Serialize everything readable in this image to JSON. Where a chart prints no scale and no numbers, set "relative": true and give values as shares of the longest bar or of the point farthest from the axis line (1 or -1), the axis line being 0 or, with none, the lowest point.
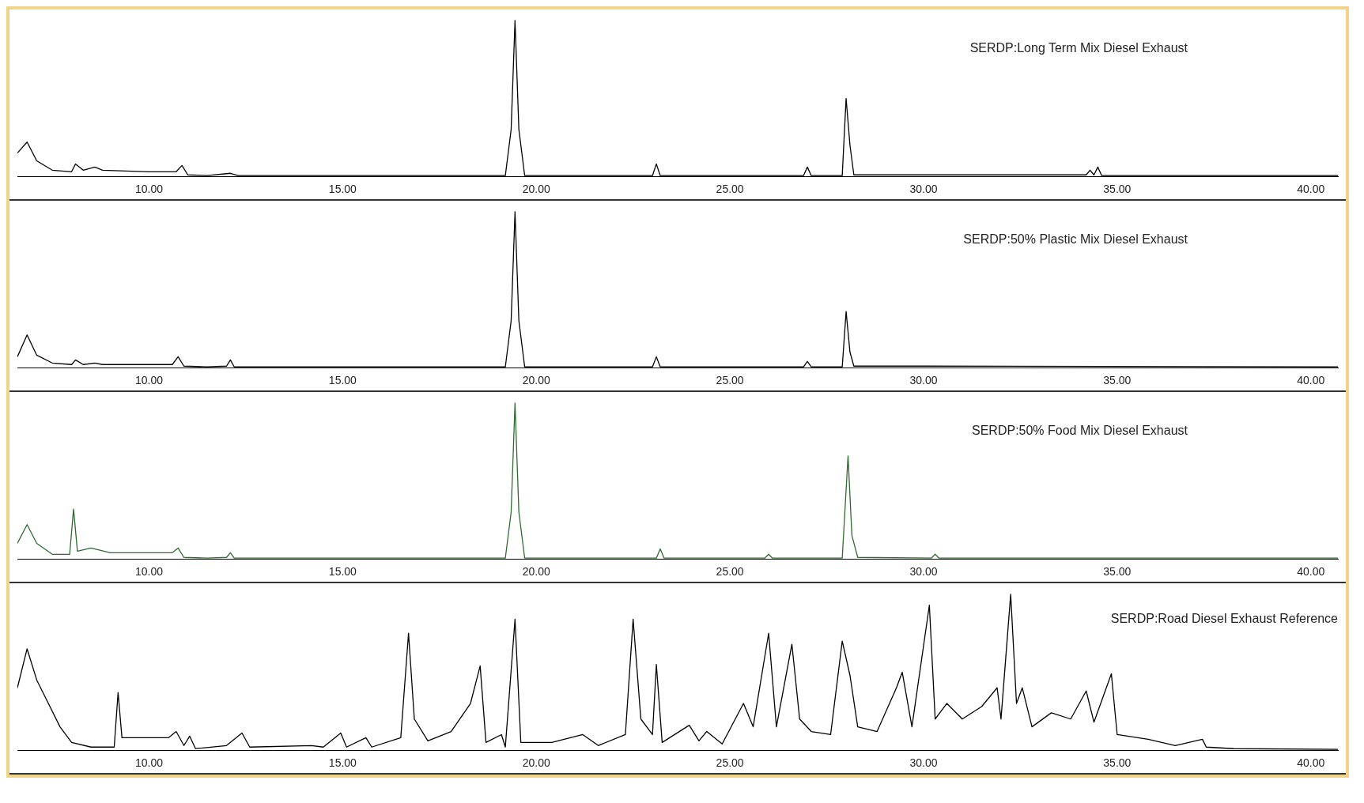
{
  "chart_data": [
    {
      "type": "line",
      "title": "SERDP:Long Term Mix Diesel Exhaust",
      "color": "#000000",
      "relative": true,
      "xlim": [
        6.6,
        40.7
      ],
      "xticks": [
        {
          "value": 10,
          "label": "10.00"
        },
        {
          "value": 15,
          "label": "15.00"
        },
        {
          "value": 20,
          "label": "20.00"
        },
        {
          "value": 25,
          "label": "25.00"
        },
        {
          "value": 30,
          "label": "30.00"
        },
        {
          "value": 35,
          "label": "35.00"
        },
        {
          "value": 40,
          "label": "40.00"
        }
      ],
      "x": [
        6.6,
        6.85,
        7.1,
        7.5,
        8.0,
        8.1,
        8.3,
        8.6,
        8.8,
        10.0,
        10.7,
        10.85,
        11.0,
        11.5,
        12.1,
        12.3,
        15,
        19.2,
        19.35,
        19.45,
        19.55,
        19.7,
        23.0,
        23.1,
        23.2,
        26.9,
        27.0,
        27.1,
        27.9,
        28.0,
        28.1,
        28.2,
        34.2,
        34.3,
        34.4,
        34.5,
        34.6,
        35,
        40.7
      ],
      "values": [
        0.15,
        0.22,
        0.1,
        0.04,
        0.03,
        0.08,
        0.04,
        0.06,
        0.04,
        0.03,
        0.03,
        0.07,
        0.01,
        0.005,
        0.02,
        0.005,
        0.005,
        0.005,
        0.3,
        1.0,
        0.3,
        0.005,
        0.005,
        0.08,
        0.005,
        0.005,
        0.06,
        0.005,
        0.005,
        0.5,
        0.2,
        0.01,
        0.01,
        0.04,
        0.01,
        0.06,
        0.005,
        0.005,
        0.005
      ]
    },
    {
      "type": "line",
      "title": "SERDP:50% Plastic Mix Diesel Exhaust",
      "color": "#000000",
      "relative": true,
      "xlim": [
        6.6,
        40.7
      ],
      "xticks": [
        {
          "value": 10,
          "label": "10.00"
        },
        {
          "value": 15,
          "label": "15.00"
        },
        {
          "value": 20,
          "label": "20.00"
        },
        {
          "value": 25,
          "label": "25.00"
        },
        {
          "value": 30,
          "label": "30.00"
        },
        {
          "value": 35,
          "label": "35.00"
        },
        {
          "value": 40,
          "label": "40.00"
        }
      ],
      "x": [
        6.6,
        6.85,
        7.1,
        7.5,
        8.0,
        8.1,
        8.3,
        8.6,
        8.8,
        10.0,
        10.6,
        10.75,
        10.9,
        11.5,
        12.0,
        12.1,
        12.2,
        15,
        19.2,
        19.35,
        19.45,
        19.55,
        19.7,
        23.0,
        23.1,
        23.2,
        26.9,
        27.0,
        27.1,
        27.9,
        28.0,
        28.1,
        28.2,
        30,
        40.7
      ],
      "values": [
        0.07,
        0.21,
        0.08,
        0.03,
        0.02,
        0.05,
        0.02,
        0.03,
        0.02,
        0.02,
        0.02,
        0.07,
        0.01,
        0.005,
        0.01,
        0.05,
        0.005,
        0.005,
        0.005,
        0.3,
        1.0,
        0.3,
        0.005,
        0.005,
        0.07,
        0.005,
        0.005,
        0.04,
        0.005,
        0.005,
        0.36,
        0.1,
        0.01,
        0.01,
        0.005
      ]
    },
    {
      "type": "line",
      "title": "SERDP:50% Food Mix Diesel Exhaust",
      "color": "#2e6b2e",
      "relative": true,
      "xlim": [
        6.6,
        40.7
      ],
      "xticks": [
        {
          "value": 10,
          "label": "10.00"
        },
        {
          "value": 15,
          "label": "15.00"
        },
        {
          "value": 20,
          "label": "20.00"
        },
        {
          "value": 25,
          "label": "25.00"
        },
        {
          "value": 30,
          "label": "30.00"
        },
        {
          "value": 35,
          "label": "35.00"
        },
        {
          "value": 40,
          "label": "40.00"
        }
      ],
      "x": [
        6.6,
        6.85,
        7.1,
        7.5,
        7.95,
        8.05,
        8.15,
        8.5,
        9.0,
        10.0,
        10.6,
        10.75,
        10.9,
        11.5,
        12.0,
        12.1,
        12.2,
        15,
        19.2,
        19.35,
        19.45,
        19.55,
        19.7,
        23.1,
        23.2,
        23.3,
        25.9,
        26.0,
        26.1,
        27.9,
        28.05,
        28.15,
        28.3,
        30.2,
        30.3,
        30.4,
        40.7
      ],
      "values": [
        0.1,
        0.22,
        0.1,
        0.03,
        0.03,
        0.32,
        0.05,
        0.07,
        0.04,
        0.04,
        0.04,
        0.07,
        0.01,
        0.005,
        0.01,
        0.04,
        0.005,
        0.005,
        0.005,
        0.3,
        1.0,
        0.3,
        0.005,
        0.005,
        0.065,
        0.005,
        0.005,
        0.03,
        0.005,
        0.005,
        0.66,
        0.15,
        0.01,
        0.005,
        0.03,
        0.005,
        0.005
      ]
    },
    {
      "type": "line",
      "title": "SERDP:Road Diesel Exhaust Reference",
      "color": "#000000",
      "relative": true,
      "xlim": [
        6.6,
        40.7
      ],
      "xticks": [
        {
          "value": 10,
          "label": "10.00"
        },
        {
          "value": 15,
          "label": "15.00"
        },
        {
          "value": 20,
          "label": "20.00"
        },
        {
          "value": 25,
          "label": "25.00"
        },
        {
          "value": 30,
          "label": "30.00"
        },
        {
          "value": 35,
          "label": "35.00"
        },
        {
          "value": 40,
          "label": "40.00"
        }
      ],
      "x": [
        6.6,
        6.85,
        7.1,
        7.4,
        7.7,
        8.0,
        8.5,
        9.1,
        9.2,
        9.3,
        10.0,
        10.5,
        10.7,
        10.9,
        11.05,
        11.2,
        12.0,
        12.4,
        12.6,
        14.2,
        14.5,
        14.95,
        15.1,
        15.6,
        15.75,
        16.5,
        16.7,
        16.85,
        17.2,
        17.8,
        18.3,
        18.55,
        18.7,
        19.1,
        19.2,
        19.45,
        19.6,
        20.4,
        21.2,
        21.6,
        22.3,
        22.5,
        22.7,
        23.0,
        23.1,
        23.25,
        23.95,
        24.2,
        24.4,
        24.8,
        25.35,
        25.6,
        26.0,
        26.2,
        26.6,
        26.8,
        27.1,
        27.6,
        27.9,
        28.1,
        28.3,
        28.8,
        29.3,
        29.45,
        29.7,
        30.15,
        30.3,
        30.6,
        31.0,
        31.5,
        31.9,
        32.0,
        32.25,
        32.4,
        32.55,
        32.8,
        33.3,
        33.8,
        34.2,
        34.4,
        34.85,
        35.0,
        35.8,
        36.5,
        37.2,
        37.3,
        38,
        40.7
      ],
      "values": [
        0.4,
        0.65,
        0.45,
        0.3,
        0.15,
        0.05,
        0.02,
        0.02,
        0.37,
        0.08,
        0.08,
        0.08,
        0.12,
        0.03,
        0.09,
        0.01,
        0.03,
        0.11,
        0.02,
        0.03,
        0.02,
        0.11,
        0.02,
        0.08,
        0.02,
        0.08,
        0.75,
        0.2,
        0.06,
        0.12,
        0.3,
        0.54,
        0.05,
        0.1,
        0.02,
        0.84,
        0.05,
        0.05,
        0.1,
        0.03,
        0.1,
        0.84,
        0.2,
        0.1,
        0.55,
        0.05,
        0.16,
        0.06,
        0.12,
        0.04,
        0.3,
        0.15,
        0.75,
        0.15,
        0.68,
        0.2,
        0.12,
        0.1,
        0.7,
        0.48,
        0.15,
        0.12,
        0.4,
        0.5,
        0.15,
        0.93,
        0.2,
        0.3,
        0.2,
        0.28,
        0.4,
        0.2,
        1.0,
        0.3,
        0.4,
        0.15,
        0.24,
        0.2,
        0.38,
        0.18,
        0.49,
        0.1,
        0.07,
        0.03,
        0.07,
        0.02,
        0.01,
        0.005
      ]
    }
  ]
}
